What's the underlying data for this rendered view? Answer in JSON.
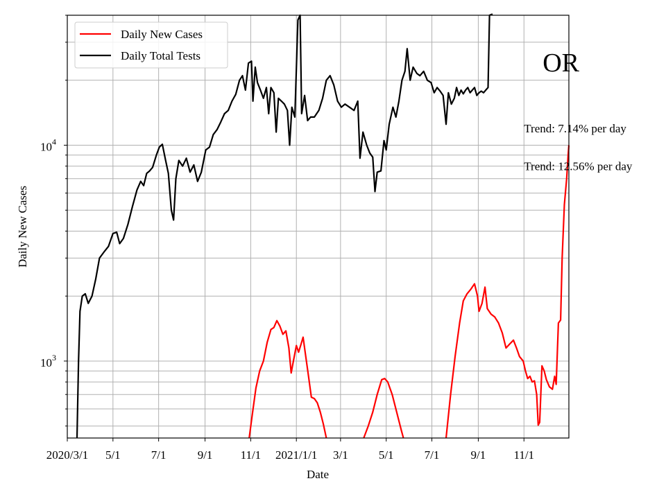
{
  "chart_data": {
    "type": "line",
    "xlabel": "Date",
    "ylabel": "Daily New Cases",
    "y_scale": "log",
    "ylim": [
      440,
      40000
    ],
    "xlim": [
      "2020-03-01",
      "2021-12-31"
    ],
    "grid": true,
    "legend_position": "top-left",
    "x_ticks": [
      {
        "date": "2020-03-01",
        "label": "2020/3/1"
      },
      {
        "date": "2020-05-01",
        "label": "5/1"
      },
      {
        "date": "2020-07-01",
        "label": "7/1"
      },
      {
        "date": "2020-09-01",
        "label": "9/1"
      },
      {
        "date": "2020-11-01",
        "label": "11/1"
      },
      {
        "date": "2021-01-01",
        "label": "2021/1/1"
      },
      {
        "date": "2021-03-01",
        "label": "3/1"
      },
      {
        "date": "2021-05-01",
        "label": "5/1"
      },
      {
        "date": "2021-07-01",
        "label": "7/1"
      },
      {
        "date": "2021-09-01",
        "label": "9/1"
      },
      {
        "date": "2021-11-01",
        "label": "11/1"
      }
    ],
    "y_major_ticks": [
      {
        "value": 1000,
        "base": "10",
        "exp": "3"
      },
      {
        "value": 10000,
        "base": "10",
        "exp": "4"
      }
    ],
    "annotations": [
      {
        "text": "OR",
        "style": "large",
        "anchor_date": "2021-11-26",
        "anchor_value": 23000
      },
      {
        "text": "Trend: 7.14% per day",
        "style": "normal",
        "anchor_date": "2021-11-01",
        "anchor_value": 12000
      },
      {
        "text": "Trend: 12.56% per day",
        "style": "normal",
        "anchor_date": "2021-11-01",
        "anchor_value": 8000
      }
    ],
    "series": [
      {
        "name": "Daily New Cases",
        "color": "#ff0000",
        "points": [
          [
            "2020-10-30",
            440
          ],
          [
            "2020-11-03",
            560
          ],
          [
            "2020-11-08",
            750
          ],
          [
            "2020-11-13",
            900
          ],
          [
            "2020-11-18",
            1000
          ],
          [
            "2020-11-23",
            1220
          ],
          [
            "2020-11-28",
            1400
          ],
          [
            "2020-12-02",
            1430
          ],
          [
            "2020-12-06",
            1540
          ],
          [
            "2020-12-10",
            1450
          ],
          [
            "2020-12-14",
            1330
          ],
          [
            "2020-12-18",
            1380
          ],
          [
            "2020-12-22",
            1150
          ],
          [
            "2020-12-25",
            880
          ],
          [
            "2020-12-28",
            1000
          ],
          [
            "2021-01-01",
            1180
          ],
          [
            "2021-01-04",
            1100
          ],
          [
            "2021-01-07",
            1190
          ],
          [
            "2021-01-10",
            1290
          ],
          [
            "2021-01-13",
            1080
          ],
          [
            "2021-01-17",
            860
          ],
          [
            "2021-01-21",
            680
          ],
          [
            "2021-01-25",
            670
          ],
          [
            "2021-01-29",
            640
          ],
          [
            "2021-02-02",
            580
          ],
          [
            "2021-02-06",
            510
          ],
          [
            "2021-02-10",
            440
          ],
          null,
          [
            "2021-04-01",
            440
          ],
          [
            "2021-04-07",
            500
          ],
          [
            "2021-04-13",
            580
          ],
          [
            "2021-04-19",
            700
          ],
          [
            "2021-04-25",
            820
          ],
          [
            "2021-04-29",
            830
          ],
          [
            "2021-05-03",
            800
          ],
          [
            "2021-05-09",
            700
          ],
          [
            "2021-05-15",
            580
          ],
          [
            "2021-05-21",
            480
          ],
          [
            "2021-05-24",
            440
          ],
          null,
          [
            "2021-07-20",
            440
          ],
          [
            "2021-07-26",
            700
          ],
          [
            "2021-08-01",
            1050
          ],
          [
            "2021-08-07",
            1500
          ],
          [
            "2021-08-12",
            1900
          ],
          [
            "2021-08-17",
            2050
          ],
          [
            "2021-08-22",
            2150
          ],
          [
            "2021-08-27",
            2280
          ],
          [
            "2021-08-31",
            2000
          ],
          [
            "2021-09-02",
            1700
          ],
          [
            "2021-09-06",
            1850
          ],
          [
            "2021-09-10",
            2200
          ],
          [
            "2021-09-13",
            1750
          ],
          [
            "2021-09-18",
            1650
          ],
          [
            "2021-09-23",
            1600
          ],
          [
            "2021-09-28",
            1500
          ],
          [
            "2021-10-03",
            1350
          ],
          [
            "2021-10-08",
            1150
          ],
          [
            "2021-10-13",
            1200
          ],
          [
            "2021-10-18",
            1250
          ],
          [
            "2021-10-22",
            1150
          ],
          [
            "2021-10-26",
            1050
          ],
          [
            "2021-10-31",
            1000
          ],
          [
            "2021-11-03",
            900
          ],
          [
            "2021-11-06",
            830
          ],
          [
            "2021-11-09",
            850
          ],
          [
            "2021-11-12",
            800
          ],
          [
            "2021-11-15",
            810
          ],
          [
            "2021-11-18",
            700
          ],
          [
            "2021-11-20",
            505
          ],
          [
            "2021-11-22",
            520
          ],
          [
            "2021-11-25",
            950
          ],
          [
            "2021-11-28",
            900
          ],
          [
            "2021-12-01",
            820
          ],
          [
            "2021-12-05",
            760
          ],
          [
            "2021-12-09",
            740
          ],
          [
            "2021-12-12",
            850
          ],
          [
            "2021-12-14",
            780
          ],
          [
            "2021-12-17",
            1500
          ],
          [
            "2021-12-20",
            1550
          ],
          [
            "2021-12-22",
            3000
          ],
          [
            "2021-12-25",
            5300
          ],
          [
            "2021-12-28",
            7000
          ],
          [
            "2021-12-30",
            9000
          ],
          [
            "2021-12-31",
            10000
          ]
        ]
      },
      {
        "name": "Daily Total Tests",
        "color": "#000000",
        "points": [
          [
            "2020-03-14",
            440
          ],
          [
            "2020-03-16",
            1000
          ],
          [
            "2020-03-18",
            1700
          ],
          [
            "2020-03-21",
            2000
          ],
          [
            "2020-03-25",
            2050
          ],
          [
            "2020-03-29",
            1850
          ],
          [
            "2020-04-03",
            2000
          ],
          [
            "2020-04-08",
            2400
          ],
          [
            "2020-04-13",
            3000
          ],
          [
            "2020-04-19",
            3200
          ],
          [
            "2020-04-25",
            3400
          ],
          [
            "2020-05-01",
            3900
          ],
          [
            "2020-05-06",
            3950
          ],
          [
            "2020-05-10",
            3500
          ],
          [
            "2020-05-15",
            3700
          ],
          [
            "2020-05-21",
            4300
          ],
          [
            "2020-05-27",
            5200
          ],
          [
            "2020-06-02",
            6200
          ],
          [
            "2020-06-07",
            6800
          ],
          [
            "2020-06-11",
            6500
          ],
          [
            "2020-06-15",
            7400
          ],
          [
            "2020-06-19",
            7600
          ],
          [
            "2020-06-23",
            7900
          ],
          [
            "2020-06-28",
            9000
          ],
          [
            "2020-07-02",
            9800
          ],
          [
            "2020-07-06",
            10100
          ],
          [
            "2020-07-10",
            8600
          ],
          [
            "2020-07-14",
            7400
          ],
          [
            "2020-07-18",
            5000
          ],
          [
            "2020-07-21",
            4500
          ],
          [
            "2020-07-24",
            7000
          ],
          [
            "2020-07-28",
            8500
          ],
          [
            "2020-08-02",
            8000
          ],
          [
            "2020-08-07",
            8700
          ],
          [
            "2020-08-12",
            7500
          ],
          [
            "2020-08-17",
            8100
          ],
          [
            "2020-08-22",
            6800
          ],
          [
            "2020-08-27",
            7500
          ],
          [
            "2020-09-02",
            9500
          ],
          [
            "2020-09-07",
            9800
          ],
          [
            "2020-09-12",
            11200
          ],
          [
            "2020-09-17",
            11800
          ],
          [
            "2020-09-22",
            12800
          ],
          [
            "2020-09-27",
            14000
          ],
          [
            "2020-10-02",
            14500
          ],
          [
            "2020-10-07",
            16000
          ],
          [
            "2020-10-12",
            17200
          ],
          [
            "2020-10-17",
            20000
          ],
          [
            "2020-10-21",
            21000
          ],
          [
            "2020-10-25",
            18000
          ],
          [
            "2020-10-29",
            24000
          ],
          [
            "2020-11-02",
            24500
          ],
          [
            "2020-11-04",
            16000
          ],
          [
            "2020-11-07",
            23000
          ],
          [
            "2020-11-10",
            19500
          ],
          [
            "2020-11-14",
            18000
          ],
          [
            "2020-11-18",
            16500
          ],
          [
            "2020-11-22",
            18500
          ],
          [
            "2020-11-25",
            14000
          ],
          [
            "2020-11-28",
            18500
          ],
          [
            "2020-12-02",
            17500
          ],
          [
            "2020-12-05",
            11500
          ],
          [
            "2020-12-08",
            16500
          ],
          [
            "2020-12-12",
            16000
          ],
          [
            "2020-12-16",
            15500
          ],
          [
            "2020-12-20",
            14500
          ],
          [
            "2020-12-23",
            10000
          ],
          [
            "2020-12-26",
            15000
          ],
          [
            "2020-12-30",
            13500
          ],
          [
            "2021-01-03",
            38000
          ],
          [
            "2021-01-06",
            40000
          ],
          [
            "2021-01-08",
            14000
          ],
          [
            "2021-01-12",
            17000
          ],
          [
            "2021-01-16",
            13000
          ],
          [
            "2021-01-20",
            13500
          ],
          [
            "2021-01-25",
            13500
          ],
          [
            "2021-01-31",
            14500
          ],
          [
            "2021-02-05",
            16500
          ],
          [
            "2021-02-10",
            20000
          ],
          [
            "2021-02-15",
            21000
          ],
          [
            "2021-02-20",
            19000
          ],
          [
            "2021-02-25",
            16000
          ],
          [
            "2021-03-02",
            15000
          ],
          [
            "2021-03-07",
            15500
          ],
          [
            "2021-03-13",
            15000
          ],
          [
            "2021-03-19",
            14500
          ],
          [
            "2021-03-24",
            16000
          ],
          [
            "2021-03-27",
            8700
          ],
          [
            "2021-03-31",
            11500
          ],
          [
            "2021-04-05",
            10000
          ],
          [
            "2021-04-09",
            9200
          ],
          [
            "2021-04-13",
            8800
          ],
          [
            "2021-04-16",
            6100
          ],
          [
            "2021-04-19",
            7500
          ],
          [
            "2021-04-24",
            7600
          ],
          [
            "2021-04-28",
            10500
          ],
          [
            "2021-05-01",
            9500
          ],
          [
            "2021-05-05",
            12500
          ],
          [
            "2021-05-10",
            15000
          ],
          [
            "2021-05-14",
            13500
          ],
          [
            "2021-05-18",
            16000
          ],
          [
            "2021-05-22",
            20000
          ],
          [
            "2021-05-26",
            22000
          ],
          [
            "2021-05-29",
            28000
          ],
          [
            "2021-06-02",
            20000
          ],
          [
            "2021-06-06",
            23000
          ],
          [
            "2021-06-11",
            21500
          ],
          [
            "2021-06-15",
            21000
          ],
          [
            "2021-06-20",
            22000
          ],
          [
            "2021-06-25",
            20000
          ],
          [
            "2021-06-30",
            19500
          ],
          [
            "2021-07-04",
            17500
          ],
          [
            "2021-07-08",
            18500
          ],
          [
            "2021-07-12",
            17800
          ],
          [
            "2021-07-16",
            17000
          ],
          [
            "2021-07-20",
            12500
          ],
          [
            "2021-07-23",
            17500
          ],
          [
            "2021-07-27",
            15500
          ],
          [
            "2021-07-31",
            16500
          ],
          [
            "2021-08-03",
            18500
          ],
          [
            "2021-08-06",
            17000
          ],
          [
            "2021-08-09",
            18000
          ],
          [
            "2021-08-12",
            17300
          ],
          [
            "2021-08-15",
            18000
          ],
          [
            "2021-08-18",
            18500
          ],
          [
            "2021-08-21",
            17500
          ],
          [
            "2021-08-24",
            18000
          ],
          [
            "2021-08-27",
            18500
          ],
          [
            "2021-08-30",
            17000
          ],
          [
            "2021-09-02",
            17500
          ],
          [
            "2021-09-05",
            17800
          ],
          [
            "2021-09-08",
            17500
          ],
          [
            "2021-09-11",
            18000
          ],
          [
            "2021-09-14",
            18500
          ],
          [
            "2021-09-16",
            40000
          ],
          [
            "2021-09-20",
            40500
          ]
        ]
      }
    ]
  }
}
